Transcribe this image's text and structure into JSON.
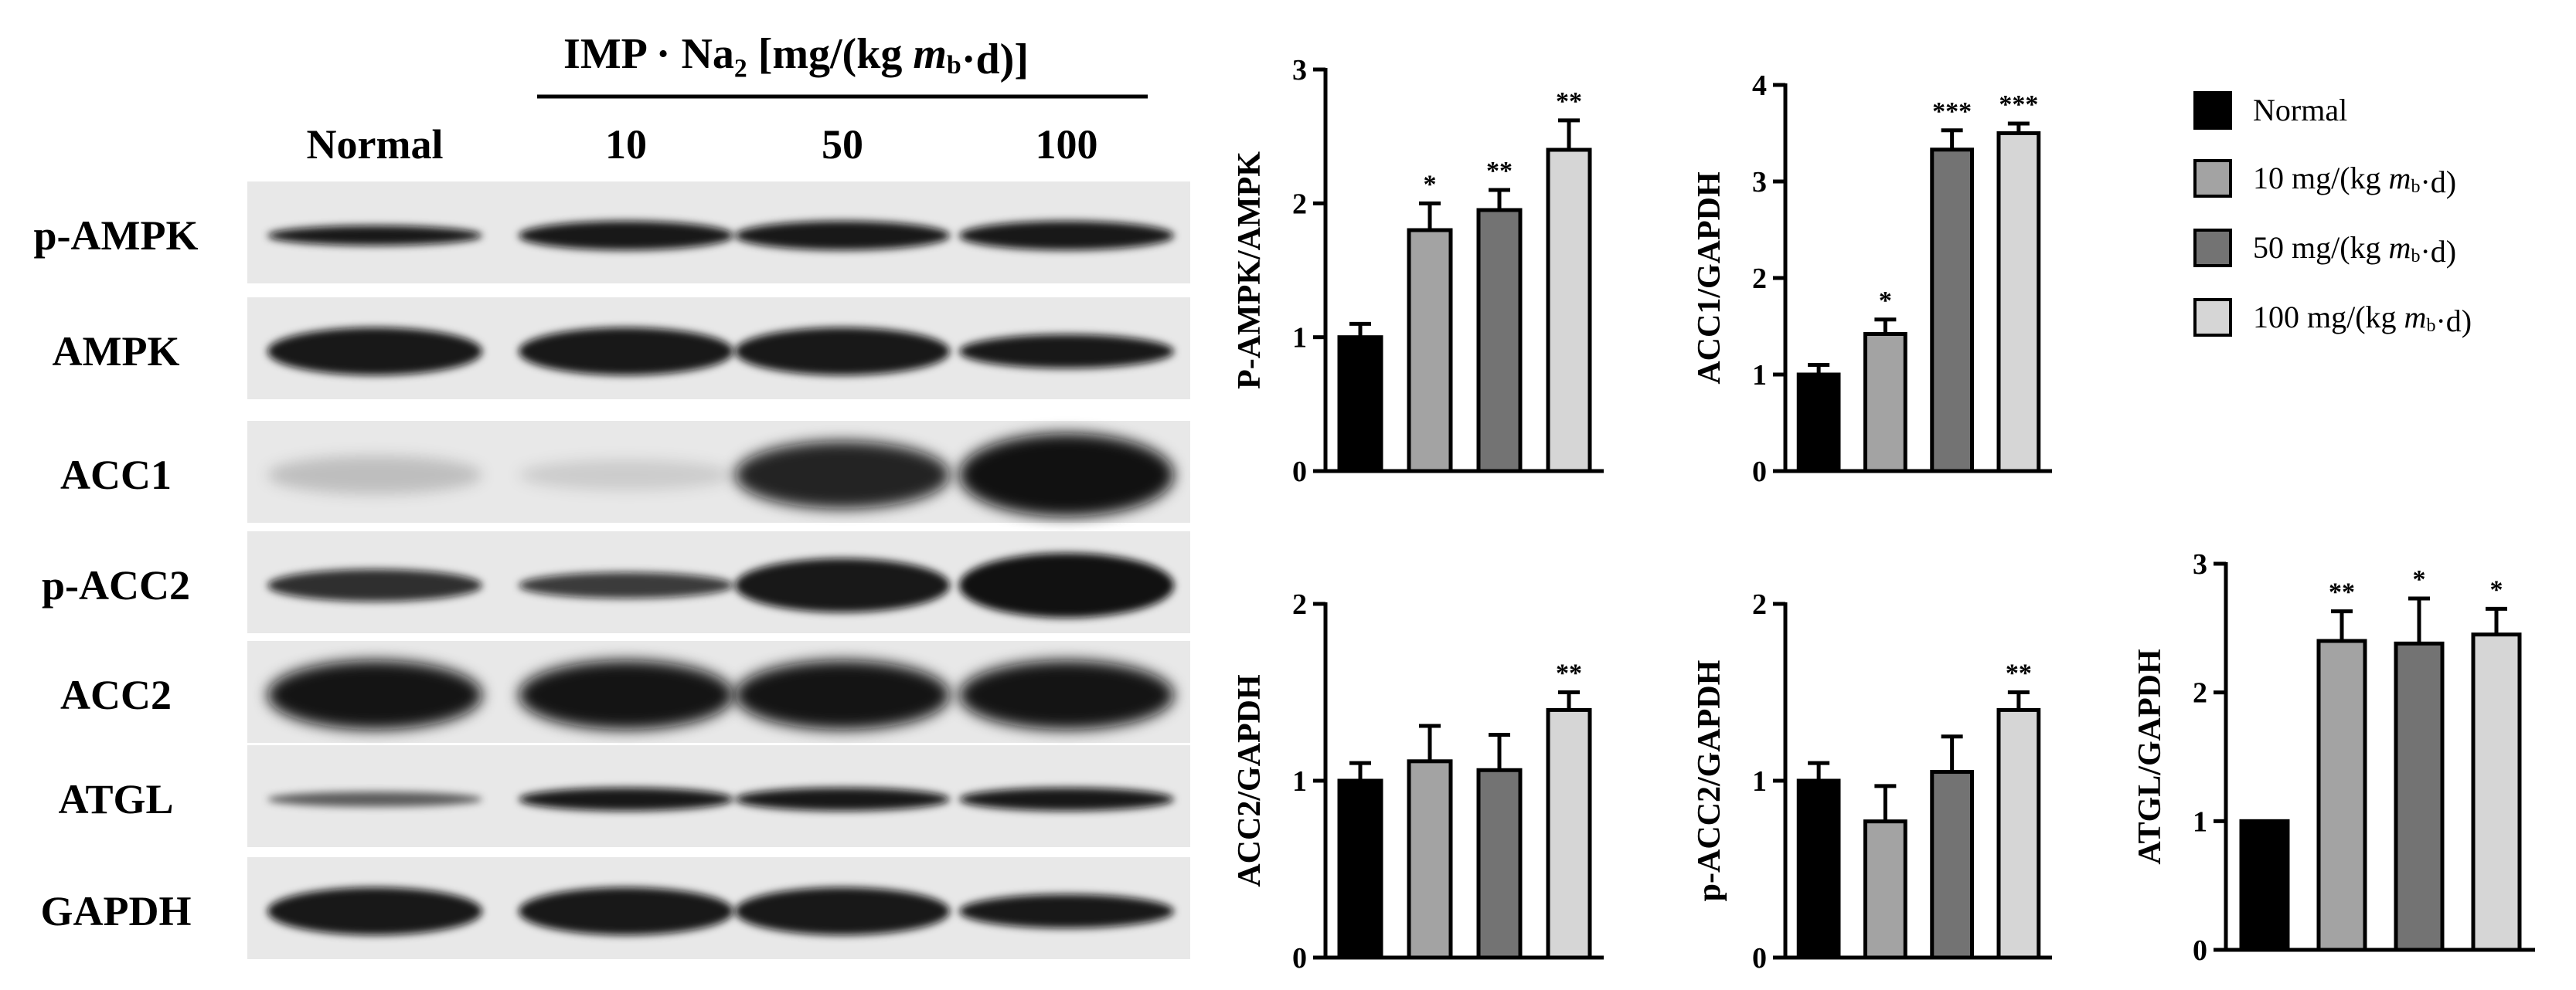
{
  "colors": {
    "normal": "#000000",
    "dose10": "#a3a3a3",
    "dose50": "#737373",
    "dose100": "#d6d6d6"
  },
  "blot": {
    "treatment_header": "IMP · Na₂  [mg/(kg m_b·d)]",
    "lane_labels": [
      "Normal",
      "10",
      "50",
      "100"
    ],
    "rows": [
      {
        "label": "p-AMPK",
        "band": "thin"
      },
      {
        "label": "AMPK",
        "band": "thick"
      },
      {
        "label": "ACC1",
        "band": "growing"
      },
      {
        "label": "p-ACC2",
        "band": "medium"
      },
      {
        "label": "ACC2",
        "band": "full"
      },
      {
        "label": "ATGL",
        "band": "thin-weak-first"
      },
      {
        "label": "GAPDH",
        "band": "thick"
      }
    ]
  },
  "legend": {
    "items": [
      {
        "label": "Normal",
        "color": "#000000"
      },
      {
        "label": "10 mg/(kg m_b·d)",
        "color": "#a3a3a3"
      },
      {
        "label": "50 mg/(kg m_b·d)",
        "color": "#737373"
      },
      {
        "label": "100 mg/(kg m_b·d)",
        "color": "#d6d6d6"
      }
    ]
  },
  "chart_data": [
    {
      "type": "bar",
      "ylabel": "P-AMPK/AMPK",
      "ylim": [
        0,
        3
      ],
      "yticks": [
        0,
        1,
        2,
        3
      ],
      "values": [
        1.0,
        1.8,
        1.95,
        2.4
      ],
      "errors": [
        0.1,
        0.2,
        0.15,
        0.22
      ],
      "significance": [
        "",
        "*",
        "**",
        "**"
      ]
    },
    {
      "type": "bar",
      "ylabel": "ACC1/GAPDH",
      "ylim": [
        0,
        4
      ],
      "yticks": [
        0,
        1,
        2,
        3,
        4
      ],
      "values": [
        1.0,
        1.42,
        3.33,
        3.5
      ],
      "errors": [
        0.1,
        0.15,
        0.2,
        0.1
      ],
      "significance": [
        "",
        "*",
        "***",
        "***"
      ]
    },
    {
      "type": "bar",
      "ylabel": "ACC2/GAPDH",
      "ylim": [
        0,
        2
      ],
      "yticks": [
        0,
        1,
        2
      ],
      "values": [
        1.0,
        1.11,
        1.06,
        1.4
      ],
      "errors": [
        0.1,
        0.2,
        0.2,
        0.1
      ],
      "significance": [
        "",
        "",
        "",
        "**"
      ]
    },
    {
      "type": "bar",
      "ylabel": "p-ACC2/GAPDH",
      "ylim": [
        0,
        2
      ],
      "yticks": [
        0,
        1,
        2
      ],
      "values": [
        1.0,
        0.77,
        1.05,
        1.4
      ],
      "errors": [
        0.1,
        0.2,
        0.2,
        0.1
      ],
      "significance": [
        "",
        "",
        "",
        "**"
      ]
    },
    {
      "type": "bar",
      "ylabel": "ATGL/GAPDH",
      "ylim": [
        0,
        3
      ],
      "yticks": [
        0,
        1,
        2,
        3
      ],
      "values": [
        1.0,
        2.4,
        2.38,
        2.45
      ],
      "errors": [
        0.0,
        0.23,
        0.35,
        0.2
      ],
      "significance": [
        "",
        "**",
        "*",
        "*"
      ]
    }
  ]
}
